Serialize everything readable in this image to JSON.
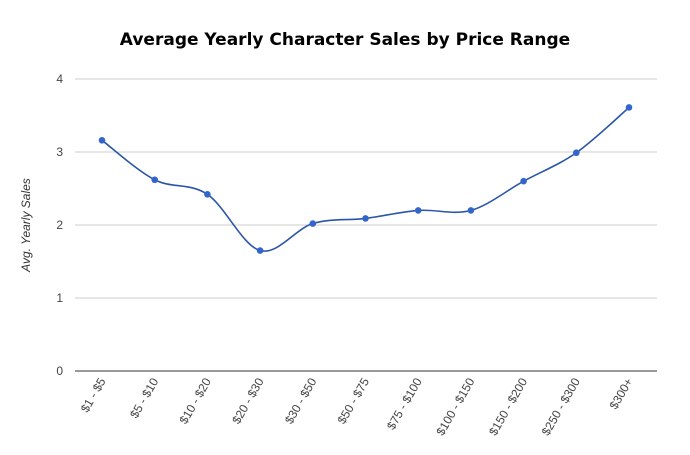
{
  "chart_data": {
    "type": "line",
    "title": "Average Yearly Character Sales by Price Range",
    "xlabel": "",
    "ylabel": "Avg. Yearly Sales",
    "categories": [
      "$1 - $5",
      "$5 - $10",
      "$10 - $20",
      "$20 - $30",
      "$30 - $50",
      "$50 - $75",
      "$75 - $100",
      "$100 - $150",
      "$150 - $200",
      "$250 - $300",
      "$300+"
    ],
    "values": [
      3.16,
      2.62,
      2.42,
      1.65,
      2.02,
      2.09,
      2.2,
      2.2,
      2.6,
      2.99,
      3.61
    ],
    "ylim": [
      0,
      4
    ],
    "yticks": [
      0,
      1,
      2,
      3,
      4
    ],
    "grid": true,
    "smooth": true,
    "legend": "none",
    "line_color": "#2a55a8",
    "marker_color": "#3366cc",
    "grid_color": "#cccccc",
    "baseline_color": "#333333"
  }
}
